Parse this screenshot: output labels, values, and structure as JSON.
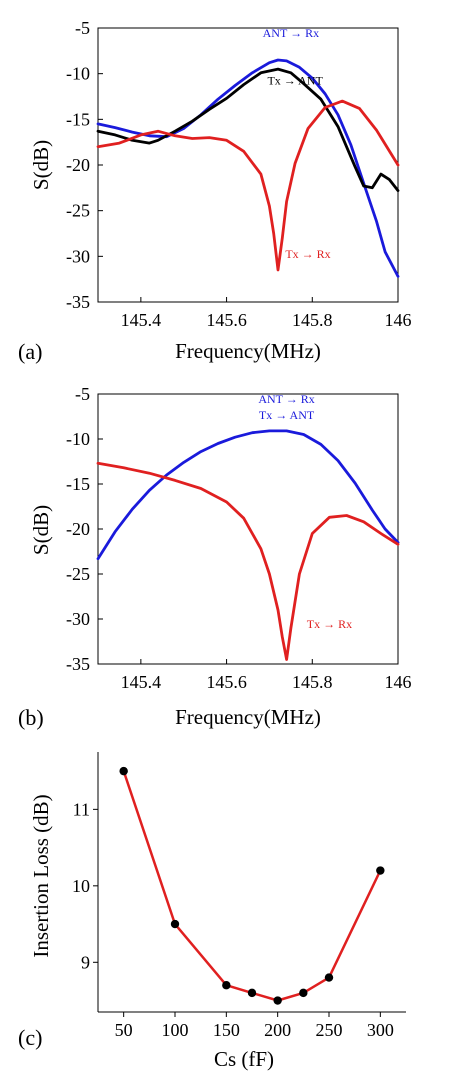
{
  "chart_data": [
    {
      "panel": "(a)",
      "type": "line",
      "xlabel": "Frequency(MHz)",
      "ylabel": "S(dB)",
      "xlim": [
        145.3,
        146.0
      ],
      "ylim": [
        -35,
        -5
      ],
      "xticks": [
        145.4,
        145.6,
        145.8,
        146
      ],
      "xtick_labels": [
        "145.4",
        "145.6",
        "145.8",
        "146"
      ],
      "yticks": [
        -5,
        -10,
        -15,
        -20,
        -25,
        -30,
        -35
      ],
      "ytick_labels": [
        "-5",
        "-10",
        "-15",
        "-20",
        "-25",
        "-30",
        "-35"
      ],
      "grid": false,
      "series": [
        {
          "name": "ANT→Rx",
          "color": "#1a1adb",
          "x": [
            145.3,
            145.34,
            145.38,
            145.42,
            145.46,
            145.5,
            145.54,
            145.58,
            145.62,
            145.66,
            145.7,
            145.72,
            145.74,
            145.77,
            145.8,
            145.83,
            145.86,
            145.89,
            145.92,
            145.95,
            145.97,
            146.0
          ],
          "y": [
            -15.5,
            -15.9,
            -16.4,
            -16.8,
            -16.9,
            -16.0,
            -14.5,
            -12.8,
            -11.3,
            -9.9,
            -8.8,
            -8.5,
            -8.6,
            -9.3,
            -10.5,
            -12.2,
            -14.5,
            -17.8,
            -22.0,
            -26.2,
            -29.5,
            -32.2
          ]
        },
        {
          "name": "Tx→ANT",
          "color": "#000000",
          "x": [
            145.3,
            145.34,
            145.38,
            145.42,
            145.44,
            145.48,
            145.52,
            145.56,
            145.6,
            145.64,
            145.68,
            145.72,
            145.75,
            145.78,
            145.82,
            145.86,
            145.9,
            145.92,
            145.94,
            145.96,
            145.98,
            146.0
          ],
          "y": [
            -16.3,
            -16.7,
            -17.3,
            -17.6,
            -17.3,
            -16.3,
            -15.2,
            -13.9,
            -12.7,
            -11.2,
            -9.9,
            -9.5,
            -9.9,
            -11.1,
            -12.8,
            -15.8,
            -20.2,
            -22.3,
            -22.5,
            -21.0,
            -21.6,
            -22.8
          ]
        },
        {
          "name": "Tx→Rx",
          "color": "#e02020",
          "x": [
            145.3,
            145.35,
            145.4,
            145.44,
            145.48,
            145.52,
            145.56,
            145.6,
            145.64,
            145.68,
            145.7,
            145.71,
            145.72,
            145.73,
            145.74,
            145.76,
            145.79,
            145.83,
            145.87,
            145.91,
            145.95,
            146.0
          ],
          "y": [
            -18.0,
            -17.6,
            -16.7,
            -16.3,
            -16.8,
            -17.1,
            -17.0,
            -17.3,
            -18.5,
            -21.0,
            -24.5,
            -27.5,
            -31.5,
            -28.0,
            -24.0,
            -19.8,
            -16.0,
            -13.7,
            -13.0,
            -13.8,
            -16.2,
            -20.0
          ]
        }
      ],
      "annotations": [
        {
          "text": "ANT",
          "arrow_to": "Rx",
          "color": "#1a1adb",
          "x": 145.75,
          "y": -6.0
        },
        {
          "text": "Tx",
          "arrow_to": "ANT",
          "color": "#000000",
          "x": 145.76,
          "y": -11.2
        },
        {
          "text": "Tx",
          "arrow_to": "Rx",
          "color": "#e02020",
          "x": 145.79,
          "y": -30.2
        }
      ]
    },
    {
      "panel": "(b)",
      "type": "line",
      "xlabel": "Frequency(MHz)",
      "ylabel": "S(dB)",
      "xlim": [
        145.3,
        146.0
      ],
      "ylim": [
        -35,
        -5
      ],
      "xticks": [
        145.4,
        145.6,
        145.8,
        146
      ],
      "xtick_labels": [
        "145.4",
        "145.6",
        "145.8",
        "146"
      ],
      "yticks": [
        -5,
        -10,
        -15,
        -20,
        -25,
        -30,
        -35
      ],
      "ytick_labels": [
        "-5",
        "-10",
        "-15",
        "-20",
        "-25",
        "-30",
        "-35"
      ],
      "grid": false,
      "series": [
        {
          "name": "ANT→Rx / Tx→ANT",
          "color": "#1a1adb",
          "x": [
            145.3,
            145.34,
            145.38,
            145.42,
            145.46,
            145.5,
            145.54,
            145.58,
            145.62,
            145.66,
            145.7,
            145.74,
            145.78,
            145.82,
            145.86,
            145.9,
            145.94,
            145.97,
            146.0
          ],
          "y": [
            -23.3,
            -20.3,
            -17.8,
            -15.7,
            -14.0,
            -12.6,
            -11.4,
            -10.5,
            -9.8,
            -9.3,
            -9.1,
            -9.1,
            -9.5,
            -10.6,
            -12.4,
            -14.9,
            -17.9,
            -20.0,
            -21.5
          ]
        },
        {
          "name": "Tx→Rx",
          "color": "#e02020",
          "x": [
            145.3,
            145.36,
            145.42,
            145.48,
            145.54,
            145.6,
            145.64,
            145.68,
            145.7,
            145.72,
            145.73,
            145.74,
            145.75,
            145.77,
            145.8,
            145.84,
            145.88,
            145.92,
            145.96,
            146.0
          ],
          "y": [
            -12.7,
            -13.2,
            -13.8,
            -14.6,
            -15.5,
            -17.0,
            -18.8,
            -22.2,
            -25.0,
            -29.0,
            -32.0,
            -34.5,
            -31.0,
            -25.0,
            -20.5,
            -18.7,
            -18.5,
            -19.2,
            -20.5,
            -21.7
          ]
        }
      ],
      "annotations": [
        {
          "text": "ANT",
          "arrow_to": "Rx",
          "color": "#1a1adb",
          "x": 145.74,
          "y": -6.0
        },
        {
          "text": "Tx",
          "arrow_to": "ANT",
          "color": "#1a1adb",
          "x": 145.74,
          "y": -7.8
        },
        {
          "text": "Tx",
          "arrow_to": "Rx",
          "color": "#e02020",
          "x": 145.84,
          "y": -31.0
        }
      ]
    },
    {
      "panel": "(c)",
      "type": "line",
      "xlabel": "Cs (fF)",
      "ylabel": "Insertion Loss (dB)",
      "xlim": [
        25,
        325
      ],
      "ylim": [
        8.35,
        11.75
      ],
      "xticks": [
        50,
        100,
        150,
        200,
        250,
        300
      ],
      "xtick_labels": [
        "50",
        "100",
        "150",
        "200",
        "250",
        "300"
      ],
      "yticks": [
        9,
        10,
        11
      ],
      "ytick_labels": [
        "9",
        "10",
        "11"
      ],
      "grid": false,
      "series": [
        {
          "name": "",
          "color": "#e02020",
          "marker_color": "#000000",
          "x": [
            50,
            100,
            150,
            175,
            200,
            225,
            250,
            300
          ],
          "y": [
            11.5,
            9.5,
            8.7,
            8.6,
            8.5,
            8.6,
            8.8,
            10.2
          ]
        }
      ],
      "annotations": []
    }
  ]
}
